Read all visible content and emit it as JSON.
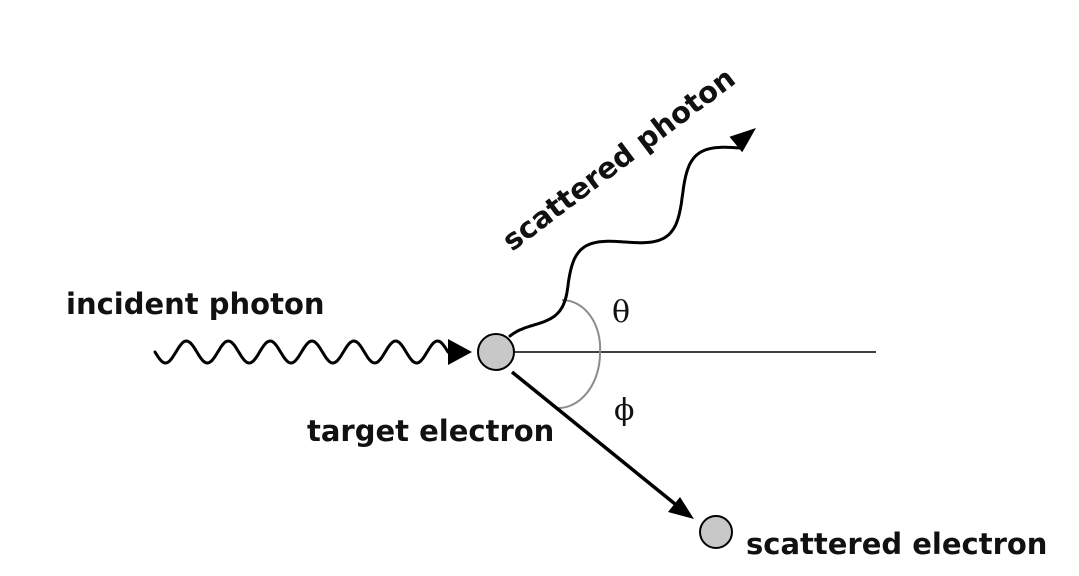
{
  "labels": {
    "incident_photon": "incident photon",
    "scattered_photon": "scattered photon",
    "target_electron": "target electron",
    "scattered_electron": "scattered electron",
    "theta": "θ",
    "phi": "ϕ"
  },
  "colors": {
    "text": "#111111",
    "line": "#000000",
    "angle_arc": "#8c8c8c",
    "electron_fill": "#c8c8c8",
    "electron_stroke": "#000000",
    "background": "#ffffff"
  }
}
